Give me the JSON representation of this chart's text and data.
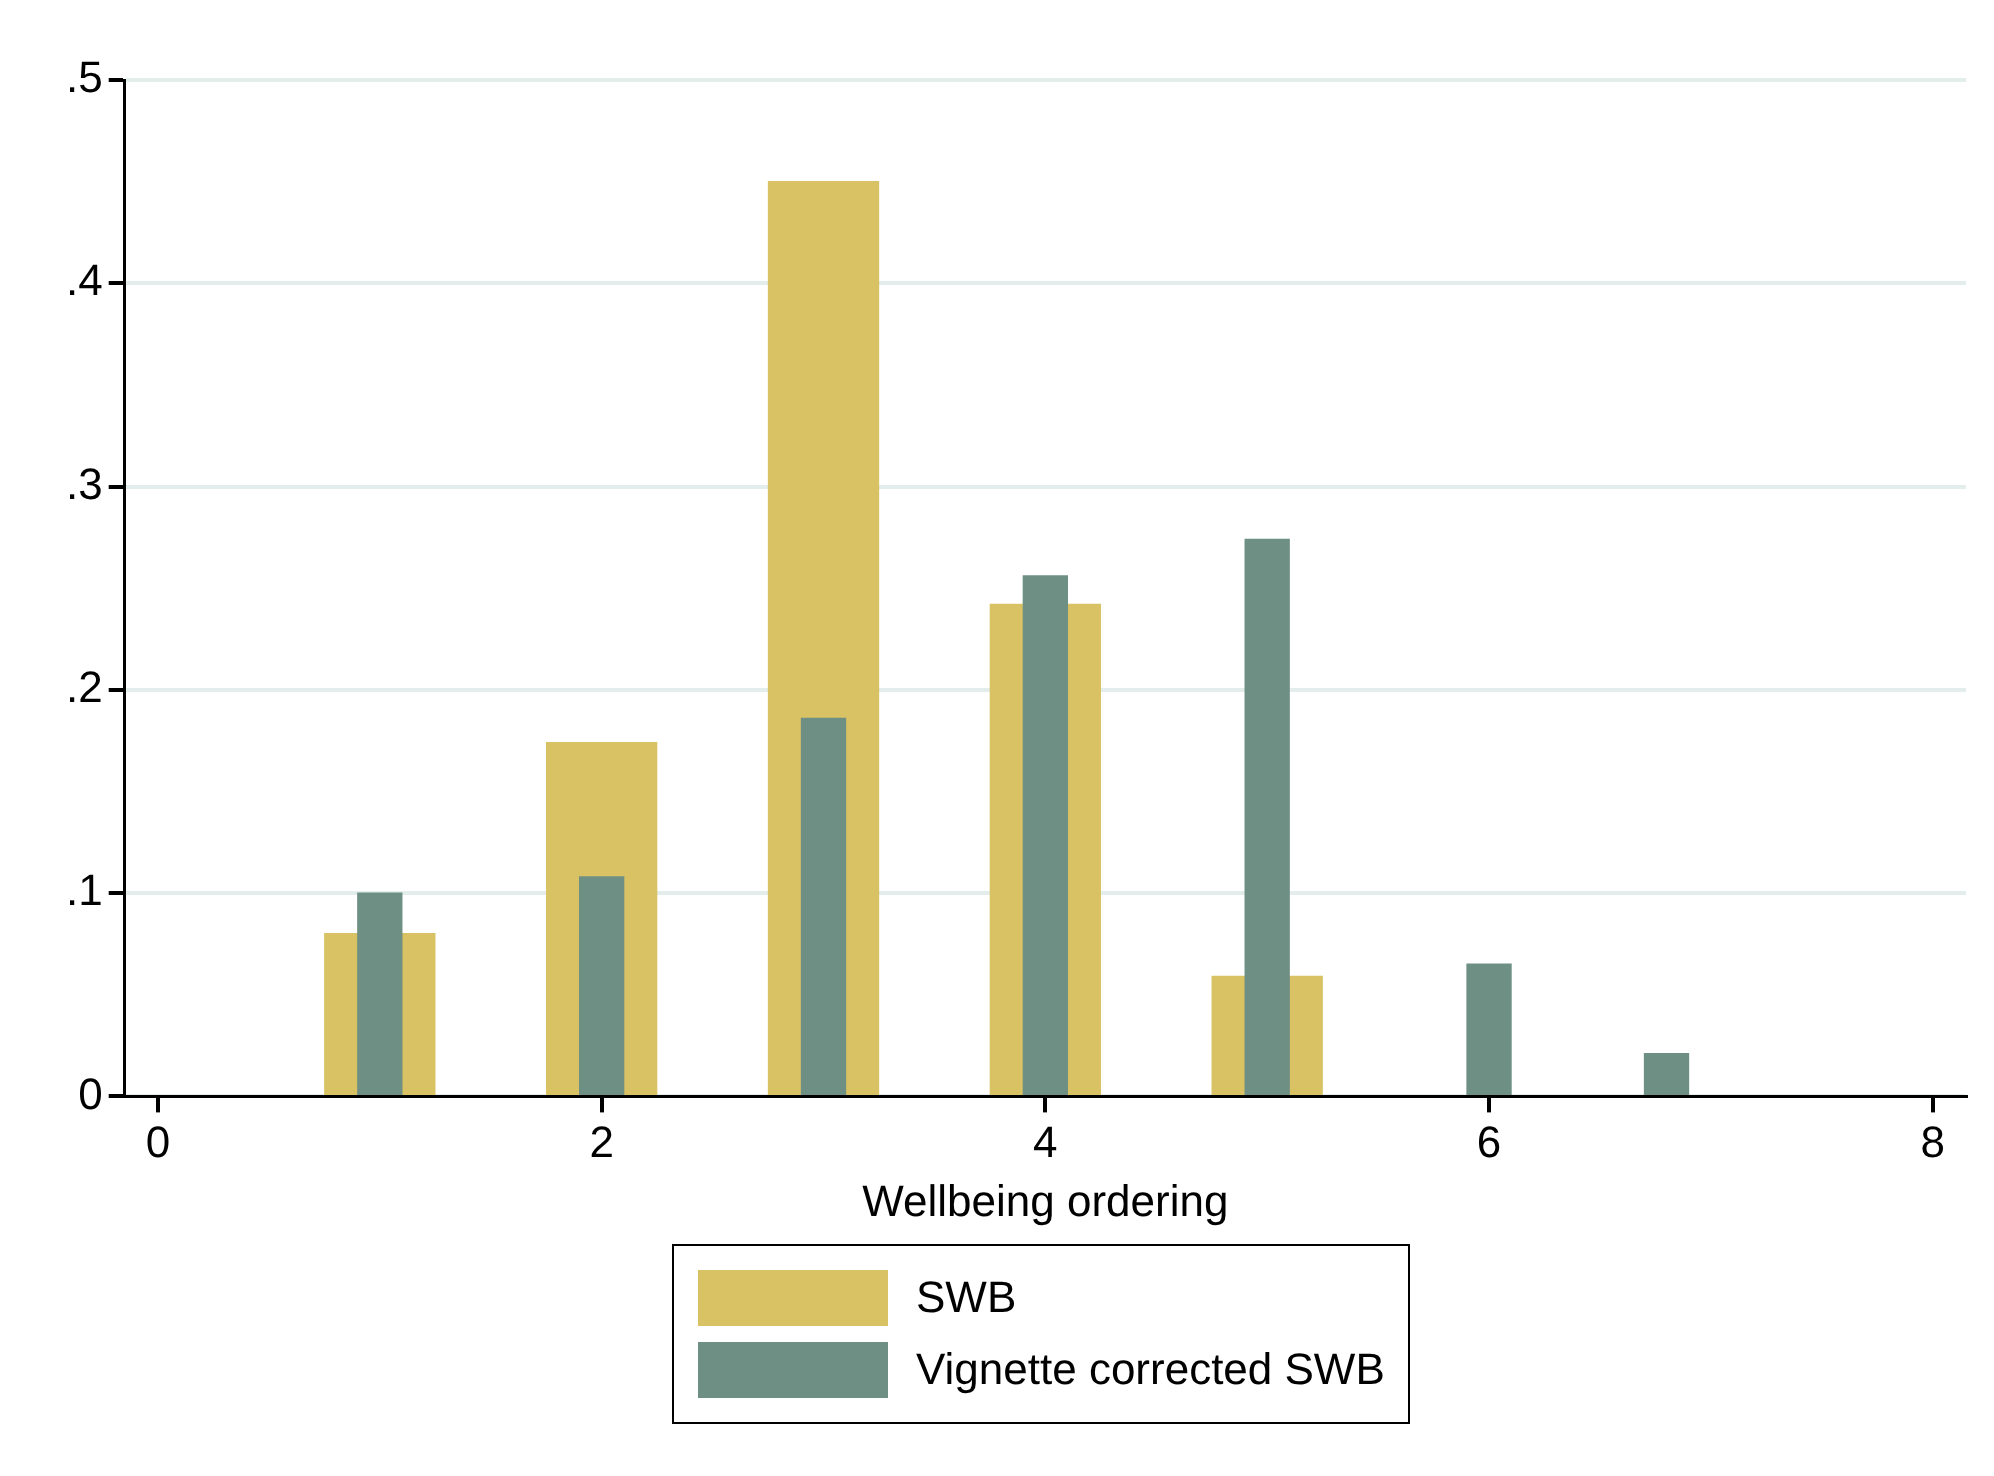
{
  "chart_data": {
    "type": "bar",
    "xlabel": "Wellbeing ordering",
    "series": [
      {
        "name": "SWB",
        "color": "#d9c263",
        "x": [
          1,
          2,
          3,
          4,
          5
        ],
        "values": [
          0.08,
          0.174,
          0.45,
          0.242,
          0.059
        ]
      },
      {
        "name": "Vignette corrected SWB",
        "color": "#6e8f84",
        "x": [
          1,
          2,
          3,
          4,
          5,
          6,
          6.8
        ],
        "values": [
          0.1,
          0.108,
          0.186,
          0.256,
          0.274,
          0.065,
          0.021
        ]
      }
    ],
    "xlim": [
      -0.15,
      8.15
    ],
    "xticks": [
      0,
      2,
      4,
      6,
      8
    ],
    "ylim": [
      0,
      0.5
    ],
    "yticks": [
      0,
      {
        "value": 0.1,
        "label": ".1"
      },
      {
        "value": 0.2,
        "label": ".2"
      },
      {
        "value": 0.3,
        "label": ".3"
      },
      {
        "value": 0.4,
        "label": ".4"
      },
      {
        "value": 0.5,
        "label": ".5"
      }
    ],
    "grid": "y",
    "legend": "bottom"
  }
}
